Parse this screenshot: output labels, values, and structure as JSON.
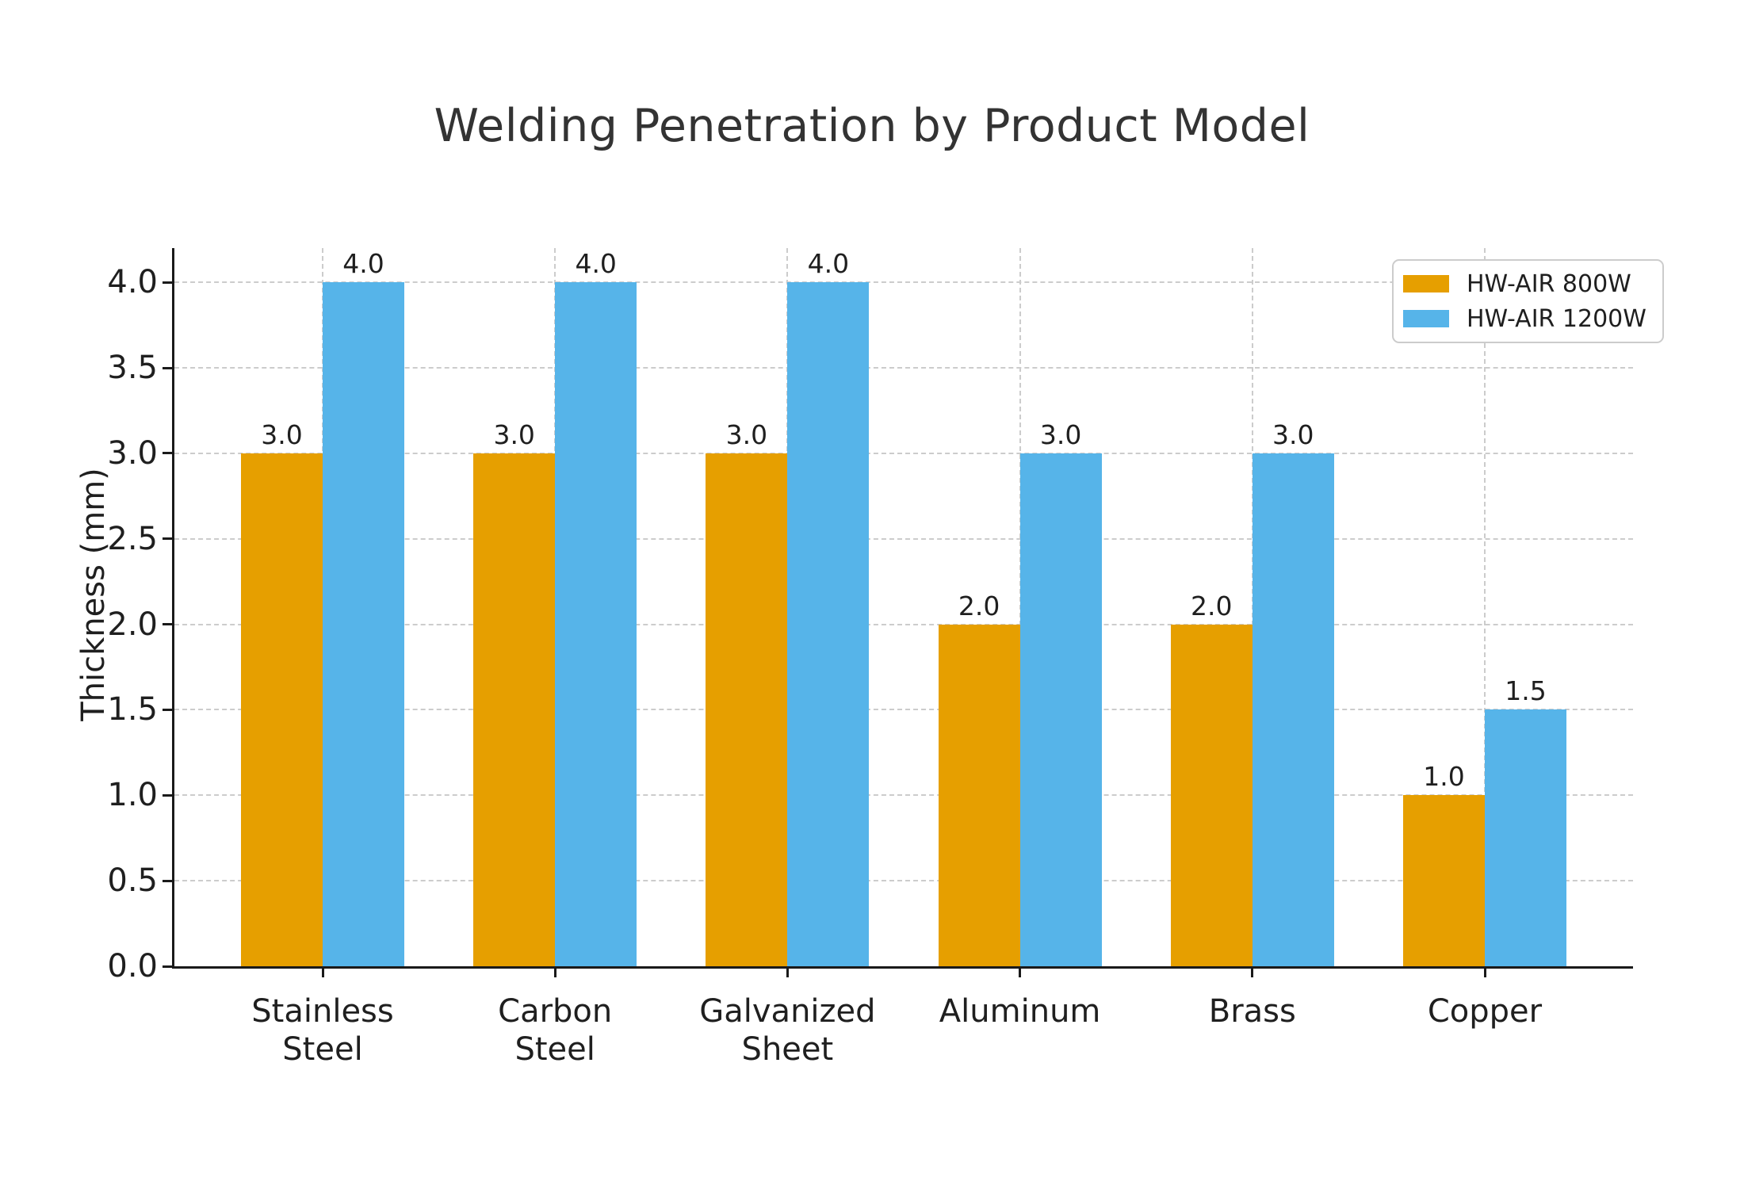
{
  "chart_data": {
    "type": "bar",
    "title": "Welding Penetration by Product Model",
    "ylabel": "Thickness (mm)",
    "xlabel": "",
    "categories": [
      "Stainless\nSteel",
      "Carbon\nSteel",
      "Galvanized\nSheet",
      "Aluminum",
      "Brass",
      "Copper"
    ],
    "series": [
      {
        "name": "HW-AIR 800W",
        "color": "#E69F00",
        "values": [
          3.0,
          3.0,
          3.0,
          2.0,
          2.0,
          1.0
        ],
        "value_labels": [
          "3.0",
          "3.0",
          "3.0",
          "2.0",
          "2.0",
          "1.0"
        ]
      },
      {
        "name": "HW-AIR 1200W",
        "color": "#56B4E9",
        "values": [
          4.0,
          4.0,
          4.0,
          3.0,
          3.0,
          1.5
        ],
        "value_labels": [
          "4.0",
          "4.0",
          "4.0",
          "3.0",
          "3.0",
          "1.5"
        ]
      }
    ],
    "ylim": [
      0,
      4.2
    ],
    "yticks": [
      0.0,
      0.5,
      1.0,
      1.5,
      2.0,
      2.5,
      3.0,
      3.5,
      4.0
    ],
    "ytick_labels": [
      "0.0",
      "0.5",
      "1.0",
      "1.5",
      "2.0",
      "2.5",
      "3.0",
      "3.5",
      "4.0"
    ],
    "grid": "dashed",
    "grid_on": true,
    "legend_position": "upper right",
    "colors": {
      "axis": "#1a1a1a",
      "text": "#1f1f1f",
      "title": "#333333",
      "grid": "#cccccc",
      "legend_border": "#cccccc",
      "background": "#ffffff"
    }
  }
}
